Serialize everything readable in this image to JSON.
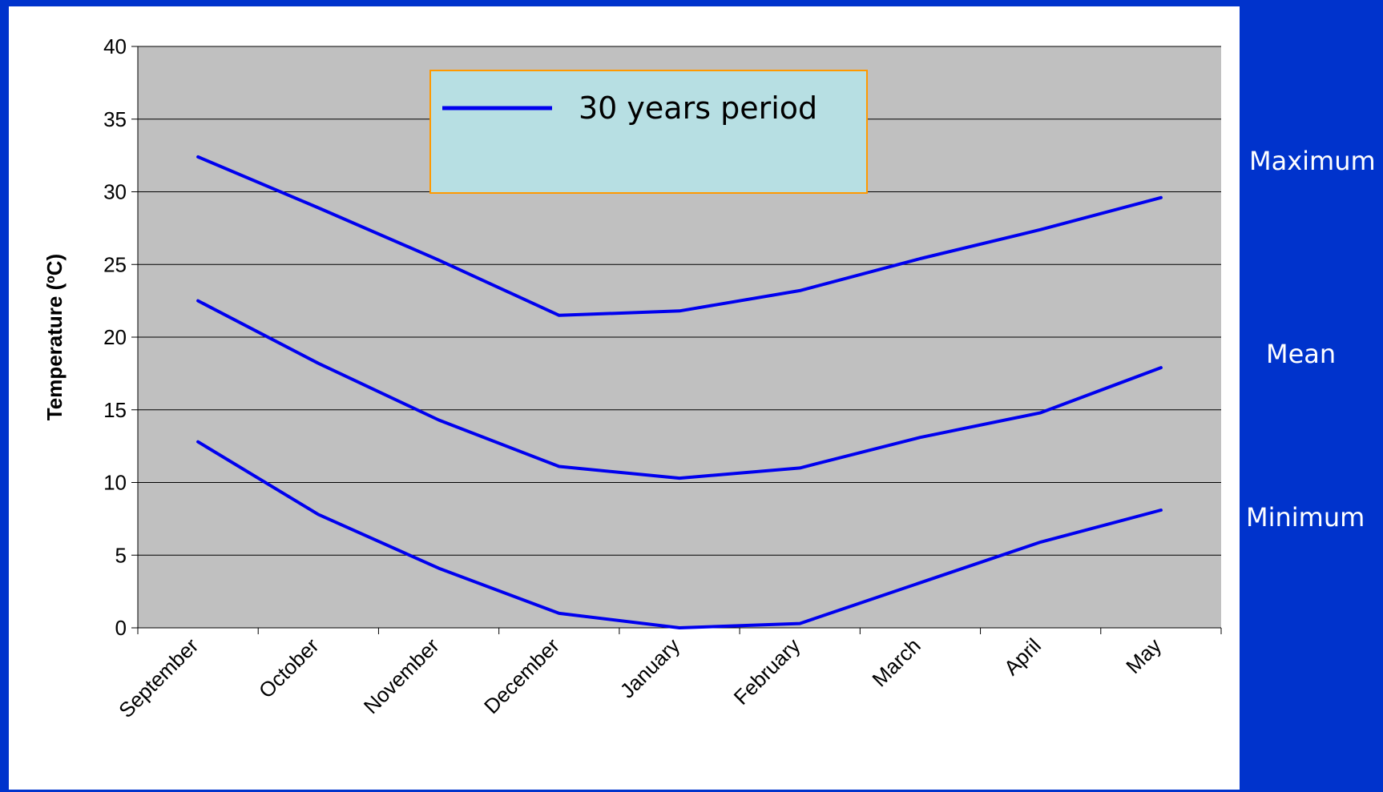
{
  "chart_data": {
    "type": "line",
    "categories": [
      "September",
      "October",
      "November",
      "December",
      "January",
      "February",
      "March",
      "April",
      "May"
    ],
    "ylabel": "Temperature (ºC)",
    "ylim": [
      0,
      40
    ],
    "yticks": [
      0,
      5,
      10,
      15,
      20,
      25,
      30,
      35,
      40
    ],
    "grid": true,
    "legend": {
      "label": "30 years period",
      "position": "top-center"
    },
    "series": [
      {
        "values": [
          32.4,
          28.9,
          25.3,
          21.5,
          21.8,
          23.2,
          25.4,
          27.4,
          29.6
        ]
      },
      {
        "values": [
          22.5,
          18.2,
          14.3,
          11.1,
          10.3,
          11.0,
          13.1,
          14.8,
          17.9
        ]
      },
      {
        "values": [
          12.8,
          7.8,
          4.1,
          1.0,
          0.0,
          0.3,
          3.1,
          5.9,
          8.1
        ]
      }
    ]
  },
  "side_labels": {
    "maximum": "Maximum",
    "mean": "Mean",
    "minimum": "Minimum"
  },
  "colors": {
    "background": "#0033cc",
    "plot_area": "#c0c0c0",
    "line": "#0000ee",
    "legend_fill": "#b7dfe3",
    "legend_border": "#ff9900"
  }
}
